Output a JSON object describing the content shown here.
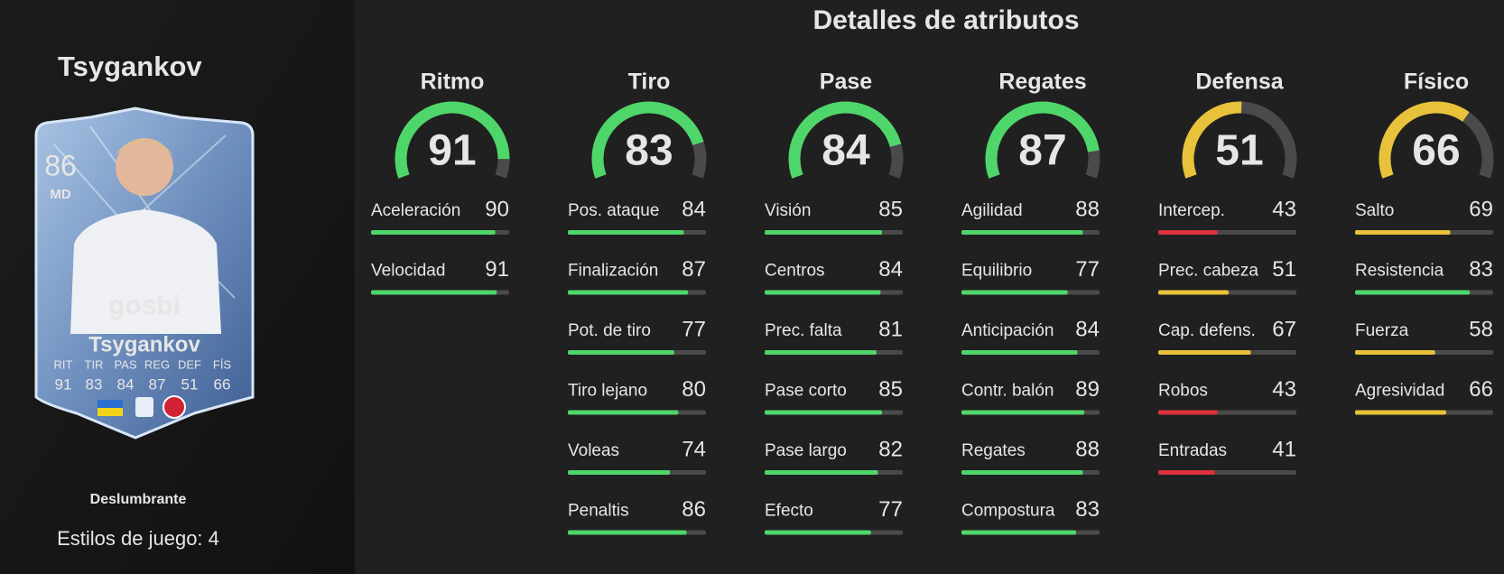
{
  "player": {
    "name": "Tsygankov",
    "card": {
      "rating": 86,
      "position": "MD",
      "name": "Tsygankov",
      "stat_labels": [
        "RIT",
        "TIR",
        "PAS",
        "REG",
        "DEF",
        "FÍS"
      ],
      "stat_values": [
        91,
        83,
        84,
        87,
        51,
        66
      ]
    },
    "chemistry_style": "Deslumbrante",
    "playstyles": "Estilos de juego: 4"
  },
  "title": "Detalles de atributos",
  "groups": [
    {
      "name": "Ritmo",
      "value": 91,
      "color": "#4fd66a",
      "stats": [
        {
          "name": "Aceleración",
          "value": 90,
          "color": "#4fd66a"
        },
        {
          "name": "Velocidad",
          "value": 91,
          "color": "#4fd66a"
        }
      ]
    },
    {
      "name": "Tiro",
      "value": 83,
      "color": "#4fd66a",
      "stats": [
        {
          "name": "Pos. ataque",
          "value": 84,
          "color": "#4fd66a"
        },
        {
          "name": "Finalización",
          "value": 87,
          "color": "#4fd66a"
        },
        {
          "name": "Pot. de tiro",
          "value": 77,
          "color": "#4fd66a"
        },
        {
          "name": "Tiro lejano",
          "value": 80,
          "color": "#4fd66a"
        },
        {
          "name": "Voleas",
          "value": 74,
          "color": "#4fd66a"
        },
        {
          "name": "Penaltis",
          "value": 86,
          "color": "#4fd66a"
        }
      ]
    },
    {
      "name": "Pase",
      "value": 84,
      "color": "#4fd66a",
      "stats": [
        {
          "name": "Visión",
          "value": 85,
          "color": "#4fd66a"
        },
        {
          "name": "Centros",
          "value": 84,
          "color": "#4fd66a"
        },
        {
          "name": "Prec. falta",
          "value": 81,
          "color": "#4fd66a"
        },
        {
          "name": "Pase corto",
          "value": 85,
          "color": "#4fd66a"
        },
        {
          "name": "Pase largo",
          "value": 82,
          "color": "#4fd66a"
        },
        {
          "name": "Efecto",
          "value": 77,
          "color": "#4fd66a"
        }
      ]
    },
    {
      "name": "Regates",
      "value": 87,
      "color": "#4fd66a",
      "stats": [
        {
          "name": "Agilidad",
          "value": 88,
          "color": "#4fd66a"
        },
        {
          "name": "Equilibrio",
          "value": 77,
          "color": "#4fd66a"
        },
        {
          "name": "Anticipación",
          "value": 84,
          "color": "#4fd66a"
        },
        {
          "name": "Contr. balón",
          "value": 89,
          "color": "#4fd66a"
        },
        {
          "name": "Regates",
          "value": 88,
          "color": "#4fd66a"
        },
        {
          "name": "Compostura",
          "value": 83,
          "color": "#4fd66a"
        }
      ]
    },
    {
      "name": "Defensa",
      "value": 51,
      "color": "#e8c23a",
      "stats": [
        {
          "name": "Intercep.",
          "value": 43,
          "color": "#e0323c"
        },
        {
          "name": "Prec. cabeza",
          "value": 51,
          "color": "#e8c23a"
        },
        {
          "name": "Cap. defens.",
          "value": 67,
          "color": "#e8c23a"
        },
        {
          "name": "Robos",
          "value": 43,
          "color": "#e0323c"
        },
        {
          "name": "Entradas",
          "value": 41,
          "color": "#e0323c"
        }
      ]
    },
    {
      "name": "Físico",
      "value": 66,
      "color": "#e8c23a",
      "stats": [
        {
          "name": "Salto",
          "value": 69,
          "color": "#e8c23a"
        },
        {
          "name": "Resistencia",
          "value": 83,
          "color": "#4fd66a"
        },
        {
          "name": "Fuerza",
          "value": 58,
          "color": "#e8c23a"
        },
        {
          "name": "Agresividad",
          "value": 66,
          "color": "#e8c23a"
        }
      ]
    }
  ]
}
